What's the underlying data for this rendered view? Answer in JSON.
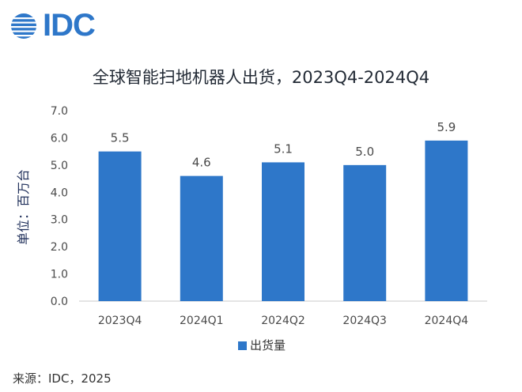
{
  "logo": {
    "text": "IDC",
    "color": "#2e77c9"
  },
  "source": "来源：IDC，2025",
  "colors": {
    "bar": "#2e77c9",
    "axis": "#c8c8c8",
    "text": "#4a4a4a"
  },
  "chart_data": {
    "type": "bar",
    "title": "全球智能扫地机器人出货，2023Q4-2024Q4",
    "ylabel": "单位：百万台",
    "xlabel": "",
    "categories": [
      "2023Q4",
      "2024Q1",
      "2024Q2",
      "2024Q3",
      "2024Q4"
    ],
    "series": [
      {
        "name": "出货量",
        "values": [
          5.5,
          4.6,
          5.1,
          5.0,
          5.9
        ]
      }
    ],
    "data_labels": [
      "5.5",
      "4.6",
      "5.1",
      "5.0",
      "5.9"
    ],
    "y_ticks": [
      "0.0",
      "1.0",
      "2.0",
      "3.0",
      "4.0",
      "5.0",
      "6.0",
      "7.0"
    ],
    "ylim": [
      0,
      7
    ],
    "grid": false,
    "legend_position": "bottom"
  }
}
